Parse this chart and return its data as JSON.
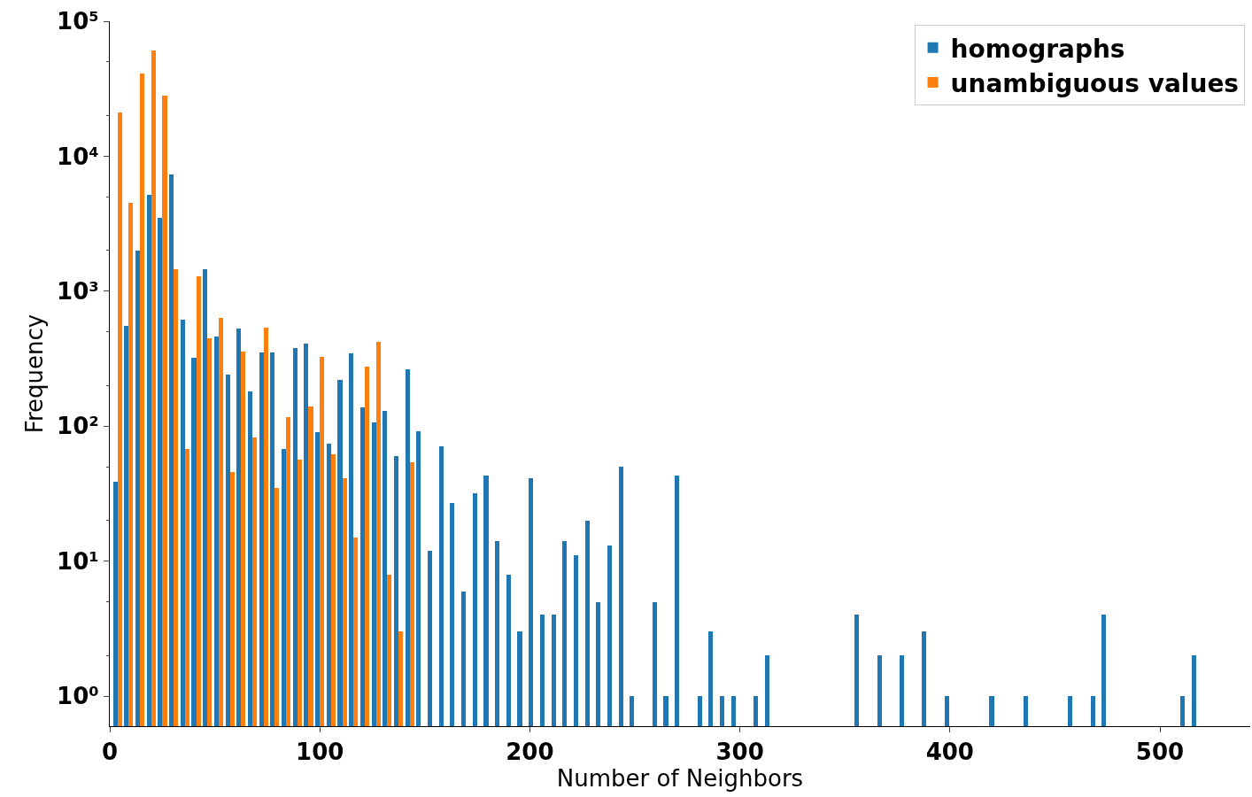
{
  "chart_data": {
    "type": "histogram",
    "xlabel": "Number of Neighbors",
    "ylabel": "Frequency",
    "bins": [
      1,
      6.35,
      11.7,
      17.05,
      22.4,
      27.75,
      33.1,
      38.45,
      43.8,
      49.15,
      54.5,
      59.85,
      65.2,
      70.55,
      75.9,
      81.25,
      86.6,
      91.95,
      97.3,
      102.65,
      108,
      113.35,
      118.7,
      124.05,
      129.4,
      134.75,
      140.1,
      145.45,
      150.8,
      156.15,
      161.5,
      166.85,
      172.2,
      177.55,
      182.9,
      188.25,
      193.6,
      198.95,
      204.3,
      209.65,
      215,
      220.35,
      225.7,
      231.05,
      236.4,
      241.75,
      247.1,
      252.45,
      257.8,
      263.15,
      268.5,
      273.85,
      279.2,
      284.55,
      289.9,
      295.25,
      300.6,
      305.95,
      311.3,
      316.65,
      322,
      327.35,
      332.7,
      338.05,
      343.4,
      348.75,
      354.1,
      359.45,
      364.8,
      370.15,
      375.5,
      380.85,
      386.2,
      391.55,
      396.9,
      402.25,
      407.6,
      412.95,
      418.3,
      423.65,
      429,
      434.35,
      439.7,
      445.05,
      450.4,
      455.75,
      461.1,
      466.45,
      471.8,
      477.15,
      482.5,
      487.85,
      493.2,
      498.55,
      503.9,
      509.25,
      514.6,
      519.95
    ],
    "series": [
      {
        "name": "homographs",
        "color": "#1f77b4",
        "values": [
          39,
          550,
          2000,
          5200,
          3500,
          7300,
          620,
          320,
          1450,
          460,
          240,
          530,
          180,
          350,
          350,
          68,
          380,
          410,
          90,
          74,
          220,
          345,
          138,
          106,
          129,
          60,
          264,
          92,
          12,
          71,
          27,
          6,
          32,
          43,
          14,
          8,
          3,
          41,
          4,
          4,
          14,
          11,
          20,
          5,
          13,
          50,
          1,
          null,
          5,
          1,
          43,
          null,
          1,
          3,
          1,
          1,
          null,
          1,
          2,
          null,
          null,
          null,
          null,
          null,
          null,
          null,
          4,
          null,
          2,
          null,
          2,
          null,
          3,
          null,
          1,
          null,
          null,
          null,
          1,
          null,
          null,
          1,
          null,
          null,
          null,
          1,
          null,
          1,
          4,
          null,
          null,
          null,
          null,
          null,
          null,
          1,
          2
        ]
      },
      {
        "name": "unambiguous values",
        "color": "#ff7f0e",
        "values": [
          21000,
          4500,
          41000,
          61000,
          28000,
          1450,
          68,
          1300,
          450,
          630,
          46,
          360,
          82,
          540,
          35,
          117,
          57,
          140,
          326,
          62,
          41,
          15,
          276,
          423,
          8,
          3,
          54,
          null,
          null,
          null,
          null,
          null,
          null,
          null,
          null,
          null,
          null,
          null,
          null,
          null,
          null,
          null,
          null,
          null,
          null,
          null,
          null,
          null,
          null,
          null,
          null,
          null,
          null,
          null,
          null,
          null,
          null,
          null,
          null,
          null,
          null,
          null,
          null,
          null,
          null,
          null,
          null,
          null,
          null,
          null,
          null,
          null,
          null,
          null,
          null,
          null,
          null,
          null,
          null,
          null,
          null,
          null,
          null,
          null,
          null,
          null,
          null,
          null,
          null,
          null,
          null,
          null,
          null,
          null,
          null,
          null,
          null
        ]
      }
    ],
    "log": "y",
    "xlim": [
      0,
      543
    ],
    "xticks": [
      0,
      100,
      200,
      300,
      400,
      500
    ],
    "ylim": [
      0.6,
      100000
    ],
    "yticks": [
      {
        "value": 1,
        "label": "10⁰"
      },
      {
        "value": 10,
        "label": "10¹"
      },
      {
        "value": 100,
        "label": "10²"
      },
      {
        "value": 1000,
        "label": "10³"
      },
      {
        "value": 10000,
        "label": "10⁴"
      },
      {
        "value": 100000,
        "label": "10⁵"
      }
    ],
    "legend": "top right"
  }
}
